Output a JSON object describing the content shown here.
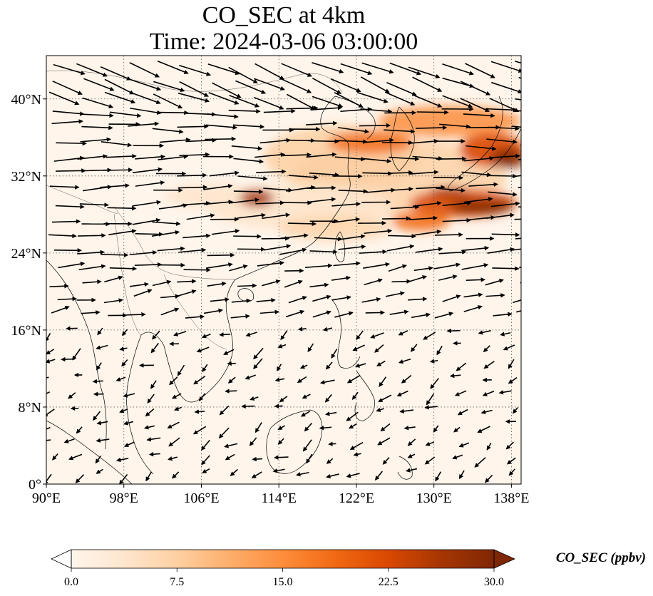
{
  "title": {
    "line1": "CO_SEC at 4km",
    "line2": "Time: 2024-03-06 03:00:00"
  },
  "map": {
    "lon_range": [
      90,
      139
    ],
    "lat_range": [
      0,
      44.5
    ],
    "lon_ticks": [
      {
        "value": 90,
        "label": "90°E"
      },
      {
        "value": 98,
        "label": "98°E"
      },
      {
        "value": 106,
        "label": "106°E"
      },
      {
        "value": 114,
        "label": "114°E"
      },
      {
        "value": 122,
        "label": "122°E"
      },
      {
        "value": 130,
        "label": "130°E"
      },
      {
        "value": 138,
        "label": "138°E"
      }
    ],
    "lat_ticks": [
      {
        "value": 0,
        "label": "0°"
      },
      {
        "value": 8,
        "label": "8°N"
      },
      {
        "value": 16,
        "label": "16°N"
      },
      {
        "value": 24,
        "label": "24°N"
      },
      {
        "value": 32,
        "label": "32°N"
      },
      {
        "value": 40,
        "label": "40°N"
      }
    ],
    "gridlines": true,
    "wind_vectors": true,
    "background_color": "#fff5eb"
  },
  "colorbar": {
    "label": "CO_SEC (ppbv)",
    "min": 0.0,
    "max": 30.0,
    "ticks": [
      {
        "value": 0,
        "label": "0.0"
      },
      {
        "value": 7.5,
        "label": "7.5"
      },
      {
        "value": 15,
        "label": "15.0"
      },
      {
        "value": 22.5,
        "label": "22.5"
      },
      {
        "value": 30,
        "label": "30.0"
      }
    ],
    "extend": "both",
    "colormap": [
      "#fff5eb",
      "#fee6ce",
      "#fdd0a2",
      "#fdae6b",
      "#fd8d3c",
      "#f16913",
      "#d94801",
      "#a63603",
      "#7f2704"
    ]
  }
}
